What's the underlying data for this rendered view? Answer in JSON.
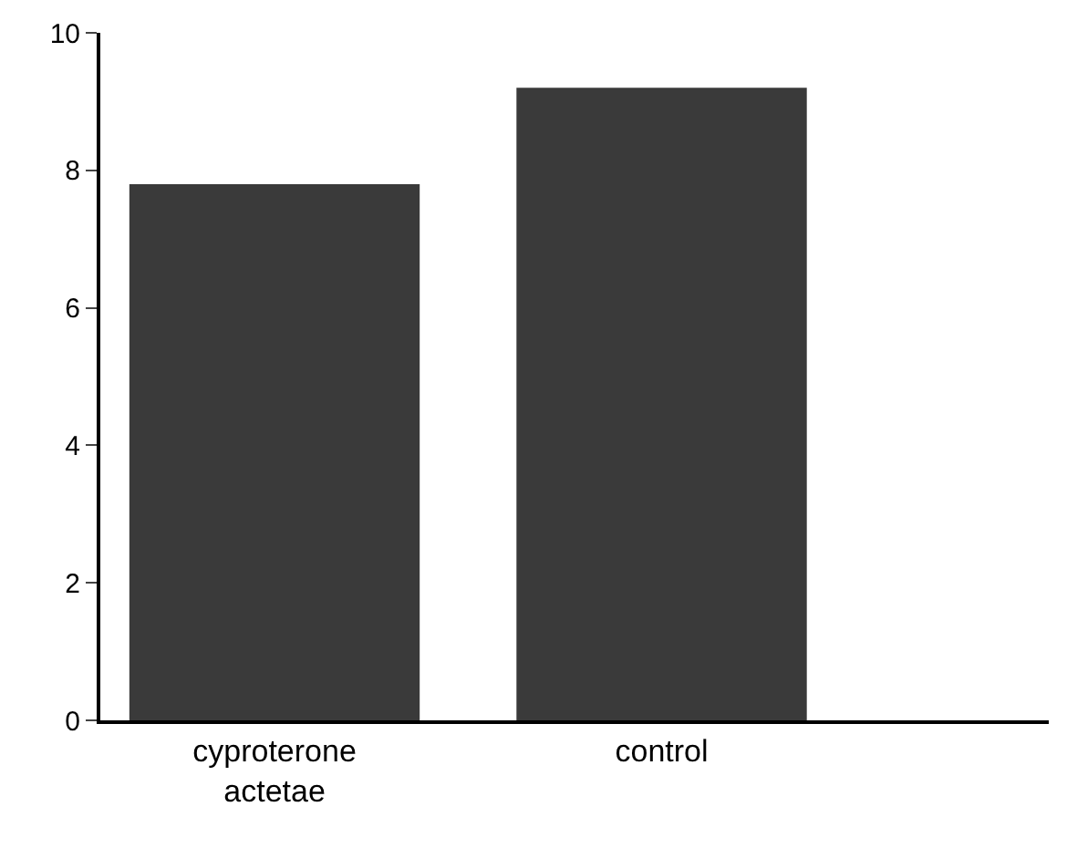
{
  "chart_data": {
    "type": "bar",
    "categories": [
      "cyproterone\nactetae",
      "control"
    ],
    "values": [
      7.8,
      9.2
    ],
    "color": "#3a3a3a",
    "ylim": [
      0,
      10
    ],
    "yticks": [
      0,
      2,
      4,
      6,
      8,
      10
    ]
  }
}
